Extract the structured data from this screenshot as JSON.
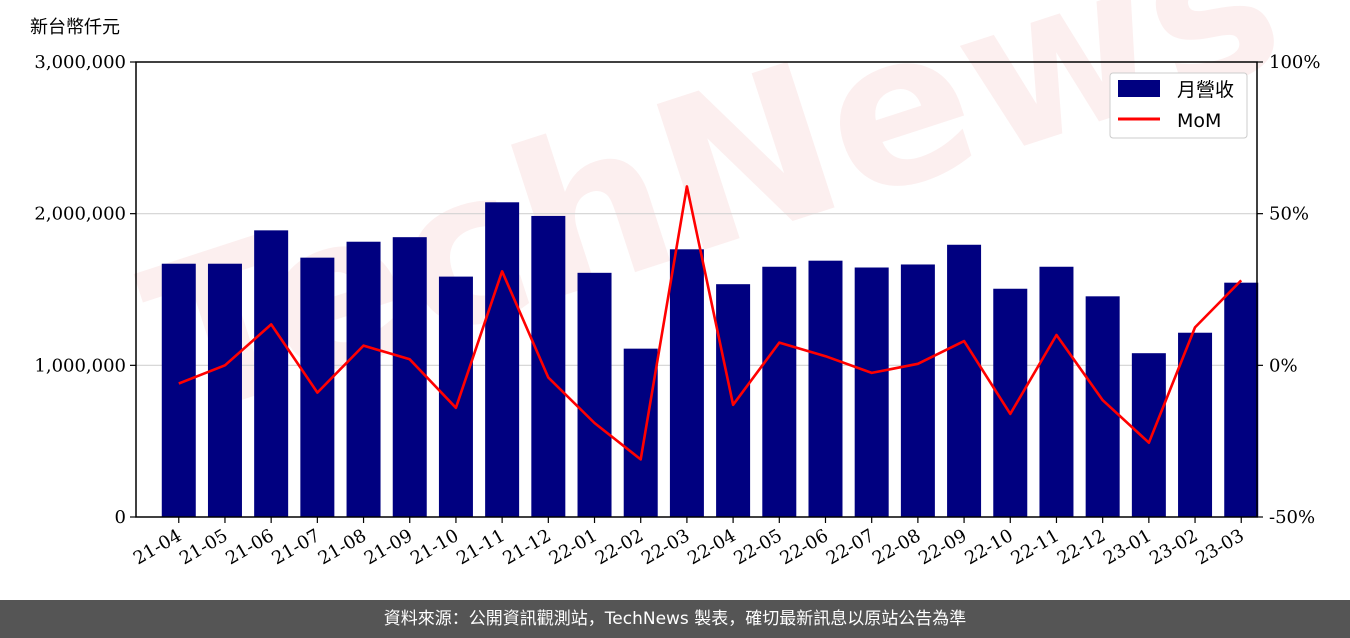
{
  "unit_label": "新台幣仟元",
  "watermark": "TechNews",
  "footer_text": "資料來源：公開資訊觀測站，TechNews 製表，確切最新訊息以原站公告為準",
  "colors": {
    "bar": "#000080",
    "line": "#ff0000",
    "grid": "#d3d3d3",
    "footer_bg": "#555555"
  },
  "chart_data": {
    "type": "bar",
    "categories": [
      "21-04",
      "21-05",
      "21-06",
      "21-07",
      "21-08",
      "21-09",
      "21-10",
      "21-11",
      "21-12",
      "22-01",
      "22-02",
      "22-03",
      "22-04",
      "22-05",
      "22-06",
      "22-07",
      "22-08",
      "22-09",
      "22-10",
      "22-11",
      "22-12",
      "23-01",
      "23-02",
      "23-03"
    ],
    "series": [
      {
        "name": "月營收",
        "type": "bar",
        "axis": "left",
        "values": [
          1670000,
          1670000,
          1890000,
          1710000,
          1815000,
          1845000,
          1585000,
          2075000,
          1985000,
          1610000,
          1110000,
          1765000,
          1535000,
          1650000,
          1690000,
          1645000,
          1665000,
          1795000,
          1505000,
          1650000,
          1455000,
          1080000,
          1215000,
          1545000
        ]
      },
      {
        "name": "MoM",
        "type": "line",
        "axis": "right",
        "values": [
          -6,
          0,
          13.5,
          -9,
          6.5,
          2,
          -14,
          31,
          -4,
          -19,
          -31,
          59,
          -13,
          7.5,
          3,
          -2.5,
          0.5,
          8,
          -16,
          10,
          -11.5,
          -25.5,
          12.5,
          28
        ]
      }
    ],
    "y_left": {
      "min": 0,
      "max": 3000000,
      "ticks": [
        0,
        1000000,
        2000000,
        3000000
      ],
      "tick_labels": [
        "0",
        "1,000,000",
        "2,000,000",
        "3,000,000"
      ]
    },
    "y_right": {
      "min": -50,
      "max": 100,
      "ticks": [
        -50,
        0,
        50,
        100
      ],
      "tick_labels": [
        "-50%",
        "0%",
        "50%",
        "100%"
      ]
    },
    "grid": true,
    "legend_position": "top-right"
  }
}
